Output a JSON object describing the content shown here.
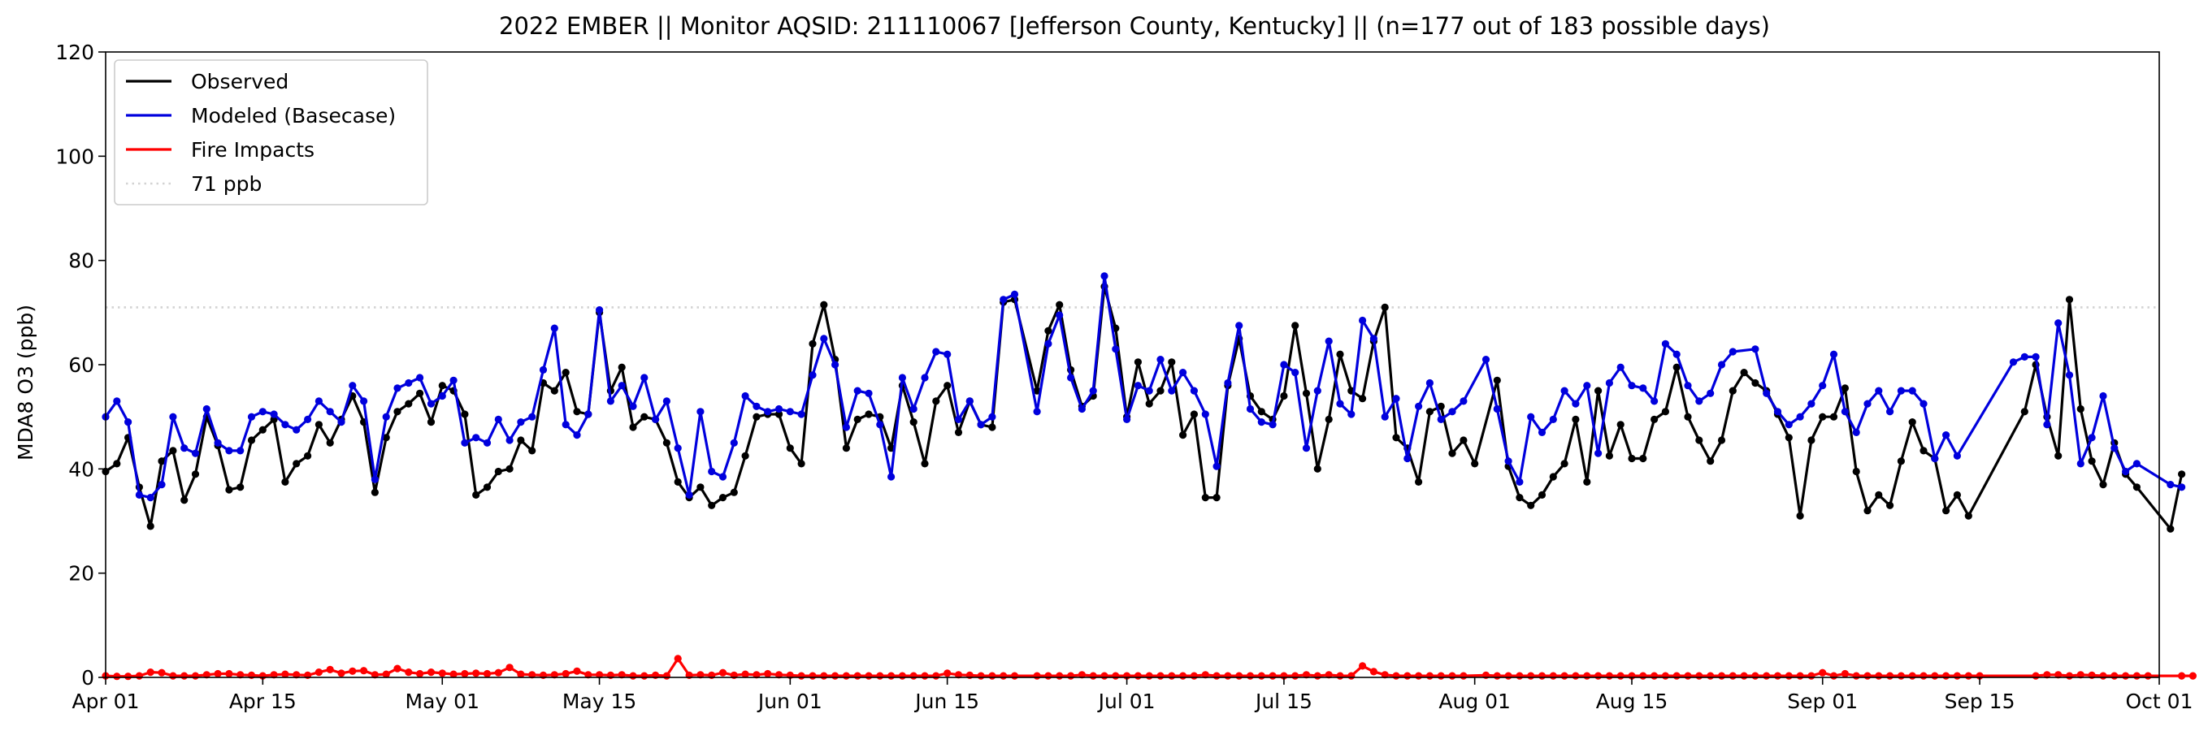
{
  "chart_data": {
    "type": "line",
    "title": "2022 EMBER || Monitor AQSID: 211110067 [Jefferson County, Kentucky] || (n=177 out of 183 possible days)",
    "xlabel": "",
    "ylabel": "MDA8 O3 (ppb)",
    "xlim": [
      "2022-04-01",
      "2022-10-01"
    ],
    "ylim": [
      0,
      120
    ],
    "y_ticks": [
      0,
      20,
      40,
      60,
      80,
      100,
      120
    ],
    "x_ticks": [
      {
        "date": "2022-04-01",
        "label": "Apr 01"
      },
      {
        "date": "2022-04-15",
        "label": "Apr 15"
      },
      {
        "date": "2022-05-01",
        "label": "May 01"
      },
      {
        "date": "2022-05-15",
        "label": "May 15"
      },
      {
        "date": "2022-06-01",
        "label": "Jun 01"
      },
      {
        "date": "2022-06-15",
        "label": "Jun 15"
      },
      {
        "date": "2022-07-01",
        "label": "Jul 01"
      },
      {
        "date": "2022-07-15",
        "label": "Jul 15"
      },
      {
        "date": "2022-08-01",
        "label": "Aug 01"
      },
      {
        "date": "2022-08-15",
        "label": "Aug 15"
      },
      {
        "date": "2022-09-01",
        "label": "Sep 01"
      },
      {
        "date": "2022-09-15",
        "label": "Sep 15"
      },
      {
        "date": "2022-10-01",
        "label": "Oct 01"
      }
    ],
    "grid": false,
    "legend_position": "upper left",
    "x_start": "2022-04-01",
    "series": [
      {
        "name": "Observed",
        "color": "#000000",
        "marker": "circle",
        "values": [
          39.5,
          41,
          46,
          36.5,
          29,
          41.5,
          43.5,
          34,
          39,
          50,
          44.5,
          36,
          36.5,
          45.5,
          47.5,
          49.5,
          37.5,
          41,
          42.5,
          48.5,
          45,
          49.5,
          54,
          49,
          35.5,
          46,
          51,
          52.5,
          54.5,
          49,
          56,
          55,
          50.5,
          35,
          36.5,
          39.5,
          40,
          45.5,
          43.5,
          56.5,
          55,
          58.5,
          51,
          50.5,
          70,
          55,
          59.5,
          48,
          50,
          49.5,
          45,
          37.5,
          34.5,
          36.5,
          33,
          34.5,
          35.5,
          42.5,
          50,
          50.5,
          50.5,
          44,
          41,
          64,
          71.5,
          61,
          44,
          49.5,
          50.5,
          50,
          44,
          56,
          49,
          41,
          53,
          56,
          47,
          53,
          48.5,
          48,
          72,
          72.5,
          null,
          55,
          66.5,
          71.5,
          59,
          52,
          54,
          75,
          67,
          50,
          60.5,
          52.5,
          55,
          60.5,
          46.5,
          50.5,
          34.5,
          34.5,
          56,
          65,
          54,
          51,
          49.5,
          54,
          67.5,
          54.5,
          40,
          49.5,
          62,
          55,
          53.5,
          64.5,
          71,
          46,
          44,
          37.5,
          51,
          52,
          43,
          45.5,
          41,
          null,
          57,
          40.5,
          34.5,
          33,
          35,
          38.5,
          41,
          49.5,
          37.5,
          55,
          42.5,
          48.5,
          42,
          42,
          49.5,
          51,
          59.5,
          50,
          45.5,
          41.5,
          45.5,
          55,
          58.5,
          56.5,
          55,
          50.5,
          46,
          31,
          45.5,
          50,
          50,
          55.5,
          39.5,
          32,
          35,
          33,
          41.5,
          49,
          43.5,
          42,
          32,
          35,
          31,
          null,
          null,
          null,
          null,
          51,
          60,
          50,
          42.5,
          72.5,
          51.5,
          41.5,
          37,
          45,
          39,
          36.5,
          null,
          null,
          28.5,
          39
        ]
      },
      {
        "name": "Modeled (Basecase)",
        "color": "#0000dd",
        "marker": "circle",
        "values": [
          50,
          53,
          49,
          35,
          34.5,
          37,
          50,
          44,
          43,
          51.5,
          45,
          43.5,
          43.5,
          50,
          51,
          50.5,
          48.5,
          47.5,
          49.5,
          53,
          51,
          49,
          56,
          53,
          38,
          50,
          55.5,
          56.5,
          57.5,
          52.5,
          54,
          57,
          45,
          46,
          45,
          49.5,
          45.5,
          49,
          50,
          59,
          67,
          48.5,
          46.5,
          50.5,
          70.5,
          53,
          56,
          52,
          57.5,
          49.5,
          53,
          44,
          35,
          51,
          39.5,
          38.5,
          45,
          54,
          52,
          51,
          51.5,
          51,
          50.5,
          58,
          65,
          60,
          48,
          55,
          54.5,
          48.5,
          38.5,
          57.5,
          51.5,
          57.5,
          62.5,
          62,
          49.5,
          53,
          48.5,
          50,
          72.5,
          73.5,
          null,
          51,
          64,
          69.5,
          57.5,
          51.5,
          55,
          77,
          63,
          49.5,
          56,
          55,
          61,
          55,
          58.5,
          55,
          50.5,
          40.5,
          56.5,
          67.5,
          51.5,
          49,
          48.5,
          60,
          58.5,
          44,
          55,
          64.5,
          52.5,
          50.5,
          68.5,
          65,
          50,
          53.5,
          42,
          52,
          56.5,
          49.5,
          51,
          53,
          null,
          61,
          51.5,
          41.5,
          37.5,
          50,
          47,
          49.5,
          55,
          52.5,
          56,
          43,
          56.5,
          59.5,
          56,
          55.5,
          53,
          64,
          62,
          56,
          53,
          54.5,
          60,
          62.5,
          null,
          63,
          54.5,
          51,
          48.5,
          50,
          52.5,
          56,
          62,
          51,
          47,
          52.5,
          55,
          51,
          55,
          55,
          52.5,
          42,
          46.5,
          42.5,
          null,
          null,
          null,
          null,
          60.5,
          61.5,
          61.5,
          48.5,
          68,
          58,
          41,
          46,
          54,
          44,
          39.5,
          41,
          null,
          null,
          37,
          36.5
        ]
      },
      {
        "name": "Fire Impacts",
        "color": "#ff0000",
        "marker": "circle",
        "values": [
          0.3,
          0.2,
          0.2,
          0.3,
          1,
          0.9,
          0.3,
          0.3,
          0.3,
          0.5,
          0.7,
          0.7,
          0.5,
          0.4,
          0.3,
          0.5,
          0.6,
          0.5,
          0.4,
          1,
          1.5,
          0.8,
          1.2,
          1.3,
          0.5,
          0.6,
          1.7,
          1,
          0.7,
          1,
          0.8,
          0.6,
          0.7,
          0.8,
          0.7,
          0.9,
          1.9,
          0.6,
          0.5,
          0.4,
          0.5,
          0.7,
          1.2,
          0.5,
          0.5,
          0.4,
          0.5,
          0.3,
          0.3,
          0.4,
          0.3,
          3.6,
          0.4,
          0.5,
          0.4,
          0.9,
          0.4,
          0.6,
          0.5,
          0.7,
          0.5,
          0.4,
          0.3,
          0.3,
          0.3,
          0.3,
          0.3,
          0.3,
          0.3,
          0.3,
          0.3,
          0.3,
          0.3,
          0.3,
          0.3,
          0.8,
          0.5,
          0.4,
          0.3,
          0.3,
          0.3,
          0.3,
          null,
          0.3,
          0.3,
          0.3,
          0.3,
          0.5,
          0.3,
          0.3,
          0.3,
          0.3,
          0.3,
          0.3,
          0.3,
          0.3,
          0.3,
          0.3,
          0.5,
          0.3,
          0.3,
          0.3,
          0.3,
          0.3,
          0.3,
          0.3,
          0.3,
          0.5,
          0.3,
          0.5,
          0.3,
          0.3,
          2.2,
          1.1,
          0.5,
          0.3,
          0.3,
          0.3,
          0.3,
          0.3,
          0.3,
          0.3,
          null,
          0.4,
          0.3,
          0.3,
          0.3,
          0.3,
          0.3,
          0.3,
          0.3,
          0.3,
          0.3,
          0.3,
          0.3,
          0.3,
          0.3,
          0.3,
          0.3,
          0.3,
          0.3,
          0.3,
          0.3,
          0.3,
          0.3,
          0.3,
          0.3,
          0.3,
          0.3,
          0.3,
          0.3,
          0.3,
          0.3,
          0.9,
          0.3,
          0.7,
          0.3,
          0.3,
          0.3,
          0.3,
          0.3,
          0.3,
          0.3,
          0.3,
          0.3,
          0.3,
          0.3,
          0.3,
          null,
          null,
          null,
          null,
          0.3,
          0.5,
          0.5,
          0.3,
          0.5,
          0.4,
          0.3,
          0.3,
          0.3,
          0.3,
          0.3,
          null,
          null,
          0.3,
          0.3
        ]
      },
      {
        "name": "71 ppb",
        "color": "#d3d3d3",
        "style": "dotted",
        "constant": 71
      }
    ]
  }
}
